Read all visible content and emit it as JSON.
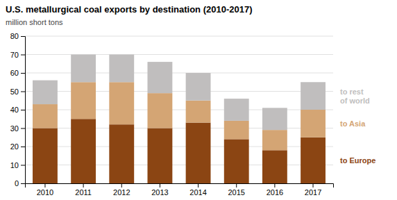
{
  "chart_data": {
    "type": "bar",
    "stacked": true,
    "title": "U.S. metallurgical coal exports by destination (2010-2017)",
    "subtitle": "million short tons",
    "categories": [
      "2010",
      "2011",
      "2012",
      "2013",
      "2014",
      "2015",
      "2016",
      "2017"
    ],
    "series": [
      {
        "name": "to Europe",
        "color": "#8B4513",
        "values": [
          30,
          35,
          32,
          30,
          33,
          24,
          18,
          25
        ]
      },
      {
        "name": "to Asia",
        "color": "#D4A574",
        "values": [
          13,
          20,
          23,
          19,
          12,
          10,
          11,
          15
        ]
      },
      {
        "name": "to rest\nof world",
        "color": "#C0BEBE",
        "values": [
          13,
          15,
          15,
          17,
          15,
          12,
          12,
          15
        ]
      }
    ],
    "ylim": [
      0,
      80
    ],
    "yticks": [
      0,
      10,
      20,
      30,
      40,
      50,
      60,
      70,
      80
    ],
    "grid": true,
    "legend": "right"
  }
}
